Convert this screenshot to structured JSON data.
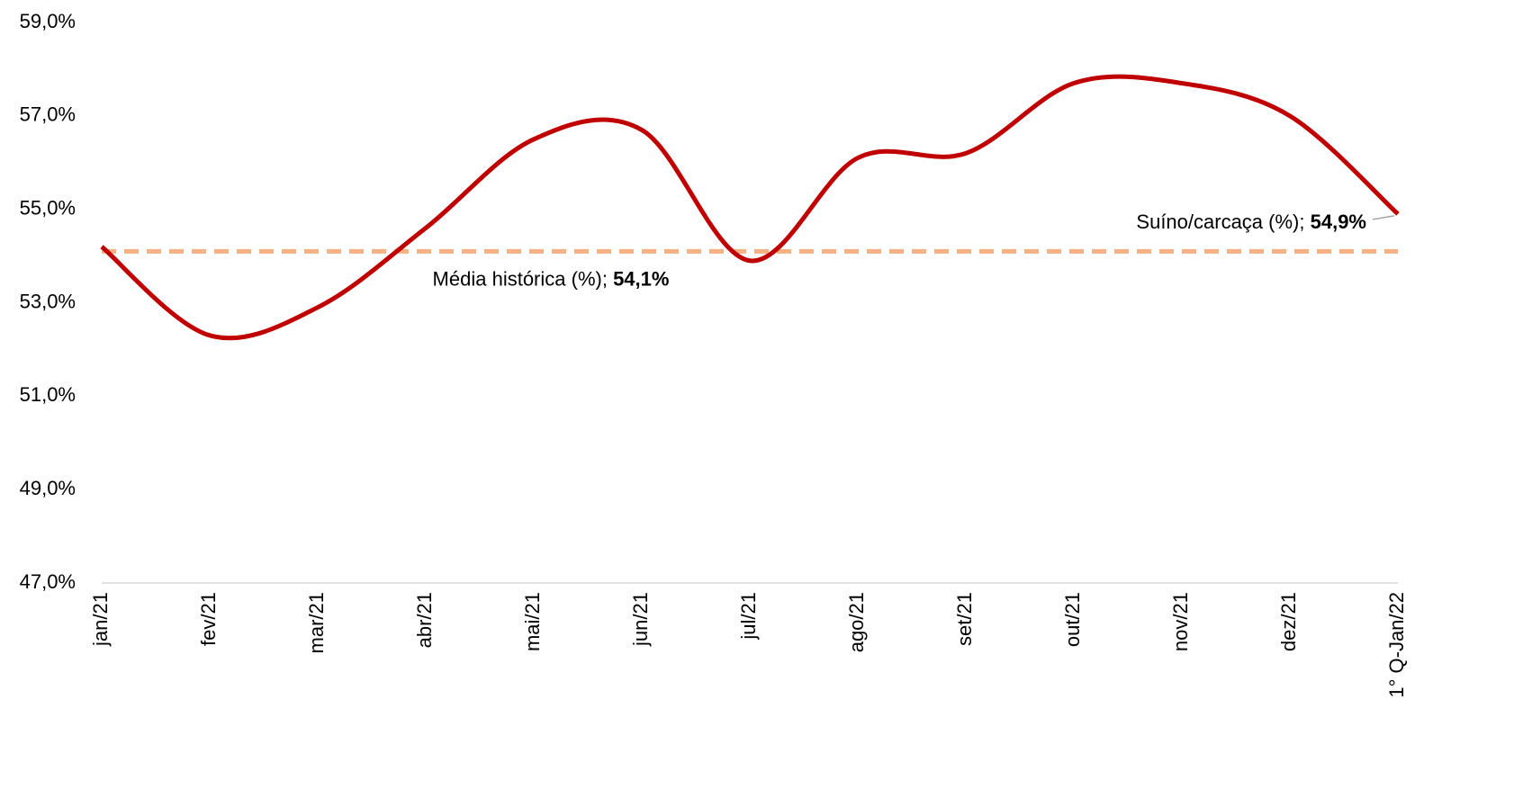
{
  "chart_data": {
    "type": "line",
    "categories": [
      "jan/21",
      "fev/21",
      "mar/21",
      "abr/21",
      "mai/21",
      "jun/21",
      "jul/21",
      "ago/21",
      "set/21",
      "out/21",
      "nov/21",
      "dez/21",
      "1° Q-Jan/22"
    ],
    "series": [
      {
        "name": "Suíno/carcaça (%)",
        "color": "#c00000",
        "values": [
          54.2,
          52.3,
          52.9,
          54.6,
          56.5,
          56.7,
          53.9,
          56.1,
          56.2,
          57.7,
          57.7,
          57.0,
          54.9
        ],
        "value_labels": [
          null,
          null,
          null,
          null,
          null,
          null,
          null,
          null,
          null,
          null,
          null,
          null,
          "54,9%"
        ]
      }
    ],
    "reference_line": {
      "name": "Média histórica (%)",
      "value": 54.1,
      "value_label": "54,1%",
      "color": "#f4b183"
    },
    "separator": "; ",
    "ylim": [
      47,
      59
    ],
    "yticks": [
      {
        "value": 47,
        "label": "47,0%"
      },
      {
        "value": 49,
        "label": "49,0%"
      },
      {
        "value": 51,
        "label": "51,0%"
      },
      {
        "value": 53,
        "label": "53,0%"
      },
      {
        "value": 55,
        "label": "55,0%"
      },
      {
        "value": 57,
        "label": "57,0%"
      },
      {
        "value": 59,
        "label": "59,0%"
      }
    ],
    "grid": false
  }
}
